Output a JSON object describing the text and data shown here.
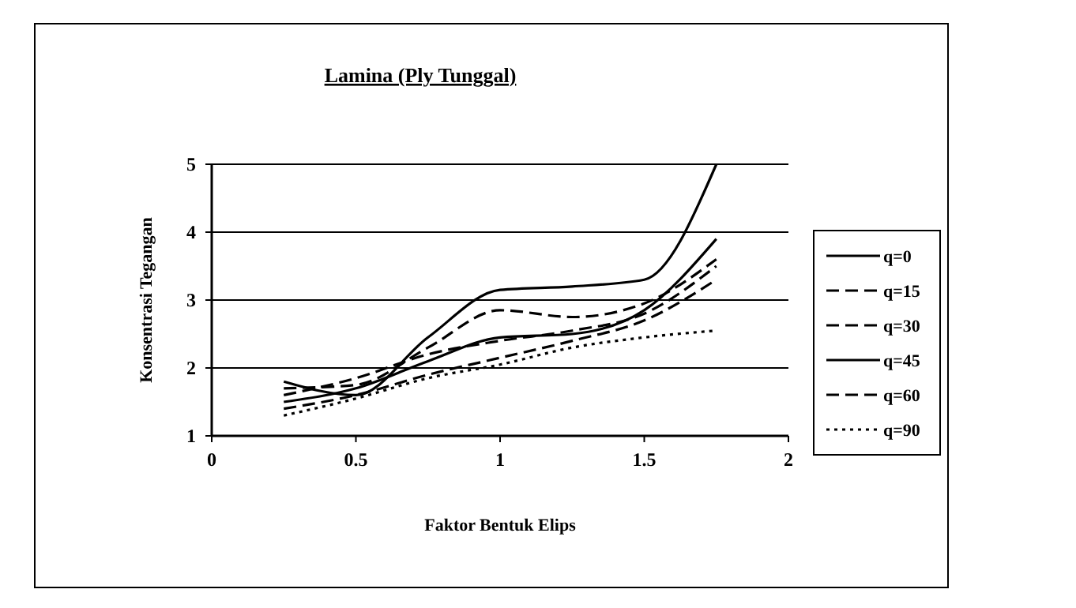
{
  "chart_data": {
    "type": "line",
    "title": "Lamina (Ply Tunggal)",
    "xlabel": "Faktor Bentuk Elips",
    "ylabel": "Konsentrasi Tegangan",
    "x": [
      0.25,
      0.5,
      0.75,
      1.0,
      1.25,
      1.5,
      1.75
    ],
    "xlim": [
      0,
      2
    ],
    "xticks": [
      0,
      0.5,
      1,
      1.5,
      2
    ],
    "ylim": [
      1,
      5
    ],
    "yticks": [
      1,
      2,
      3,
      4,
      5
    ],
    "grid": "y",
    "legend": "right",
    "marker": "none",
    "series": [
      {
        "name": "q=0",
        "color": "#000000",
        "line_style": "solid",
        "values": [
          1.8,
          1.6,
          2.45,
          3.15,
          3.2,
          3.3,
          5.0
        ]
      },
      {
        "name": "q=15",
        "color": "#000000",
        "line_style": "dashed",
        "values": [
          1.7,
          1.75,
          2.3,
          2.85,
          2.75,
          2.95,
          3.6
        ]
      },
      {
        "name": "q=30",
        "color": "#000000",
        "line_style": "dashed",
        "values": [
          1.6,
          1.85,
          2.2,
          2.4,
          2.55,
          2.8,
          3.5
        ]
      },
      {
        "name": "q=45",
        "color": "#000000",
        "line_style": "solid",
        "values": [
          1.5,
          1.7,
          2.1,
          2.45,
          2.5,
          2.85,
          3.9
        ]
      },
      {
        "name": "q=60",
        "color": "#000000",
        "line_style": "dashed",
        "values": [
          1.4,
          1.6,
          1.9,
          2.15,
          2.4,
          2.7,
          3.3
        ]
      },
      {
        "name": "q=90",
        "color": "#000000",
        "line_style": "dotted",
        "values": [
          1.3,
          1.55,
          1.85,
          2.05,
          2.3,
          2.45,
          2.55
        ]
      }
    ]
  }
}
